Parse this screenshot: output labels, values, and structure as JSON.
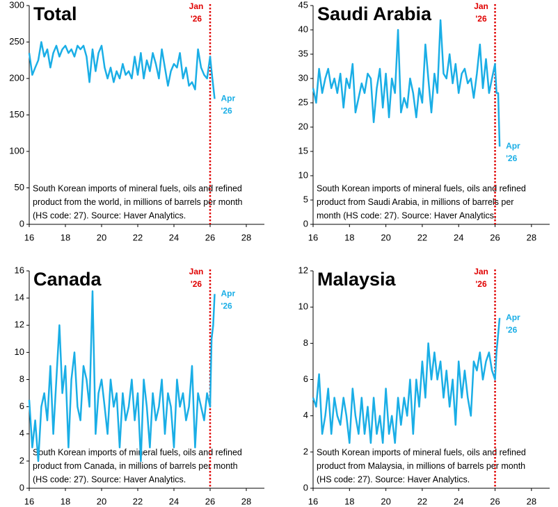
{
  "chart_data": [
    {
      "type": "line",
      "title": "Total",
      "x": [
        16,
        16.17,
        16.33,
        16.5,
        16.67,
        16.83,
        17,
        17.17,
        17.33,
        17.5,
        17.67,
        17.83,
        18,
        18.17,
        18.33,
        18.5,
        18.67,
        18.83,
        19,
        19.17,
        19.33,
        19.5,
        19.67,
        19.83,
        20,
        20.17,
        20.33,
        20.5,
        20.67,
        20.83,
        21,
        21.17,
        21.33,
        21.5,
        21.67,
        21.83,
        22,
        22.17,
        22.33,
        22.5,
        22.67,
        22.83,
        23,
        23.17,
        23.33,
        23.5,
        23.67,
        23.83,
        24,
        24.17,
        24.33,
        24.5,
        24.67,
        24.83,
        25,
        25.17,
        25.33,
        25.5,
        25.67,
        25.83,
        26,
        26.08,
        26.17,
        26.25
      ],
      "values": [
        235,
        205,
        215,
        225,
        250,
        230,
        240,
        215,
        235,
        245,
        230,
        240,
        245,
        235,
        240,
        230,
        245,
        240,
        245,
        230,
        195,
        240,
        210,
        235,
        245,
        215,
        200,
        215,
        195,
        210,
        200,
        220,
        205,
        210,
        200,
        230,
        205,
        235,
        200,
        225,
        210,
        235,
        220,
        200,
        240,
        215,
        190,
        210,
        220,
        215,
        235,
        200,
        215,
        190,
        195,
        185,
        240,
        215,
        205,
        200,
        230,
        210,
        190,
        172
      ],
      "color": "#1aaee6",
      "xlim": [
        16,
        29
      ],
      "xticks": [
        16,
        18,
        20,
        22,
        24,
        26,
        28
      ],
      "ylim": [
        0,
        300
      ],
      "yticks": [
        0,
        50,
        100,
        150,
        200,
        250,
        300
      ],
      "vline": 26,
      "vline_label": [
        "Jan",
        "'26"
      ],
      "end_label": [
        "Apr",
        "'26"
      ],
      "note": [
        "South Korean imports of mineral fuels, oils and refined",
        "product from the world, in millions of barrels per month",
        "(HS code: 27). Source: Haver Analytics."
      ]
    },
    {
      "type": "line",
      "title": "Saudi Arabia",
      "x": [
        16,
        16.17,
        16.33,
        16.5,
        16.67,
        16.83,
        17,
        17.17,
        17.33,
        17.5,
        17.67,
        17.83,
        18,
        18.17,
        18.33,
        18.5,
        18.67,
        18.83,
        19,
        19.17,
        19.33,
        19.5,
        19.67,
        19.83,
        20,
        20.17,
        20.33,
        20.5,
        20.67,
        20.83,
        21,
        21.17,
        21.33,
        21.5,
        21.67,
        21.83,
        22,
        22.17,
        22.33,
        22.5,
        22.67,
        22.83,
        23,
        23.17,
        23.33,
        23.5,
        23.67,
        23.83,
        24,
        24.17,
        24.33,
        24.5,
        24.67,
        24.83,
        25,
        25.17,
        25.33,
        25.5,
        25.67,
        25.83,
        26,
        26.08,
        26.17,
        26.25
      ],
      "values": [
        28,
        25,
        32,
        27,
        30,
        32,
        28,
        30,
        27,
        31,
        24,
        30,
        28,
        33,
        23,
        26,
        29,
        27,
        31,
        30,
        21,
        28,
        32,
        24,
        31,
        22,
        30,
        27,
        40,
        23,
        26,
        24,
        30,
        27,
        22,
        28,
        25,
        37,
        30,
        23,
        31,
        27,
        42,
        31,
        30,
        35,
        29,
        33,
        27,
        31,
        32,
        29,
        30,
        26,
        31,
        37,
        28,
        34,
        27,
        30,
        33,
        27,
        27,
        16
      ],
      "color": "#1aaee6",
      "xlim": [
        16,
        29
      ],
      "xticks": [
        16,
        18,
        20,
        22,
        24,
        26,
        28
      ],
      "ylim": [
        0,
        45
      ],
      "yticks": [
        0,
        5,
        10,
        15,
        20,
        25,
        30,
        35,
        40,
        45
      ],
      "vline": 26,
      "vline_label": [
        "Jan",
        "'26"
      ],
      "end_label": [
        "Apr",
        "'26"
      ],
      "note": [
        "South Korean imports of mineral fuels, oils and refined",
        "product from Saudi Arabia, in millions of barrels per",
        "month (HS code: 27). Source: Haver Analytics."
      ]
    },
    {
      "type": "line",
      "title": "Canada",
      "x": [
        16,
        16.17,
        16.33,
        16.5,
        16.67,
        16.83,
        17,
        17.17,
        17.33,
        17.5,
        17.67,
        17.83,
        18,
        18.17,
        18.33,
        18.5,
        18.67,
        18.83,
        19,
        19.17,
        19.33,
        19.5,
        19.67,
        19.83,
        20,
        20.17,
        20.33,
        20.5,
        20.67,
        20.83,
        21,
        21.17,
        21.33,
        21.5,
        21.67,
        21.83,
        22,
        22.17,
        22.33,
        22.5,
        22.67,
        22.83,
        23,
        23.17,
        23.33,
        23.5,
        23.67,
        23.83,
        24,
        24.17,
        24.33,
        24.5,
        24.67,
        24.83,
        25,
        25.17,
        25.33,
        25.5,
        25.67,
        25.83,
        26,
        26.08,
        26.17,
        26.25
      ],
      "values": [
        6.5,
        3,
        5,
        2,
        6,
        7,
        5,
        9,
        4,
        8,
        12,
        7,
        9,
        3,
        8,
        10,
        6,
        5,
        9,
        8,
        6,
        14.5,
        4,
        7,
        8,
        6,
        4,
        8,
        6,
        7,
        3,
        7,
        5,
        6,
        8,
        5,
        7,
        2,
        8,
        6,
        3,
        7,
        5,
        6,
        8,
        4,
        7,
        6,
        3,
        8,
        6,
        7,
        5,
        6,
        9,
        3,
        7,
        6,
        5,
        7,
        6,
        11,
        12,
        14.3
      ],
      "color": "#1aaee6",
      "xlim": [
        16,
        29
      ],
      "xticks": [
        16,
        18,
        20,
        22,
        24,
        26,
        28
      ],
      "ylim": [
        0,
        16
      ],
      "yticks": [
        0,
        2,
        4,
        6,
        8,
        10,
        12,
        14,
        16
      ],
      "vline": 26,
      "vline_label": [
        "Jan",
        "'26"
      ],
      "end_label": [
        "Apr",
        "'26"
      ],
      "note": [
        "South Korean imports of mineral fuels, oils and refined",
        "product from Canada, in millions of barrels per month",
        "(HS code: 27). Source: Haver Analytics."
      ]
    },
    {
      "type": "line",
      "title": "Malaysia",
      "x": [
        16,
        16.17,
        16.33,
        16.5,
        16.67,
        16.83,
        17,
        17.17,
        17.33,
        17.5,
        17.67,
        17.83,
        18,
        18.17,
        18.33,
        18.5,
        18.67,
        18.83,
        19,
        19.17,
        19.33,
        19.5,
        19.67,
        19.83,
        20,
        20.17,
        20.33,
        20.5,
        20.67,
        20.83,
        21,
        21.17,
        21.33,
        21.5,
        21.67,
        21.83,
        22,
        22.17,
        22.33,
        22.5,
        22.67,
        22.83,
        23,
        23.17,
        23.33,
        23.5,
        23.67,
        23.83,
        24,
        24.17,
        24.33,
        24.5,
        24.67,
        24.83,
        25,
        25.17,
        25.33,
        25.5,
        25.67,
        25.83,
        26,
        26.08,
        26.17,
        26.25
      ],
      "values": [
        5,
        4.5,
        6.3,
        3,
        4,
        5.5,
        3,
        5,
        4,
        3.5,
        5,
        4,
        2.5,
        5.5,
        4,
        3,
        5,
        3,
        4.5,
        2.5,
        5,
        3,
        4,
        2.5,
        5.5,
        3,
        4,
        2.5,
        5,
        3.5,
        5,
        4,
        6,
        3,
        6,
        4.5,
        7,
        5,
        8,
        6,
        7.5,
        6,
        7,
        5,
        6.5,
        4.5,
        6,
        3.5,
        7,
        5,
        6.5,
        5,
        4,
        7,
        6.5,
        7.5,
        6,
        7,
        7.5,
        6.5,
        6,
        7.5,
        8.5,
        9.4
      ],
      "color": "#1aaee6",
      "xlim": [
        16,
        29
      ],
      "xticks": [
        16,
        18,
        20,
        22,
        24,
        26,
        28
      ],
      "ylim": [
        0,
        12
      ],
      "yticks": [
        0,
        2,
        4,
        6,
        8,
        10,
        12
      ],
      "vline": 26,
      "vline_label": [
        "Jan",
        "'26"
      ],
      "end_label": [
        "Apr",
        "'26"
      ],
      "note": [
        "South Korean imports of mineral fuels, oils and refined",
        "product from Malaysia, in millions of barrels per month",
        "(HS code: 27). Source: Haver Analytics."
      ]
    }
  ]
}
